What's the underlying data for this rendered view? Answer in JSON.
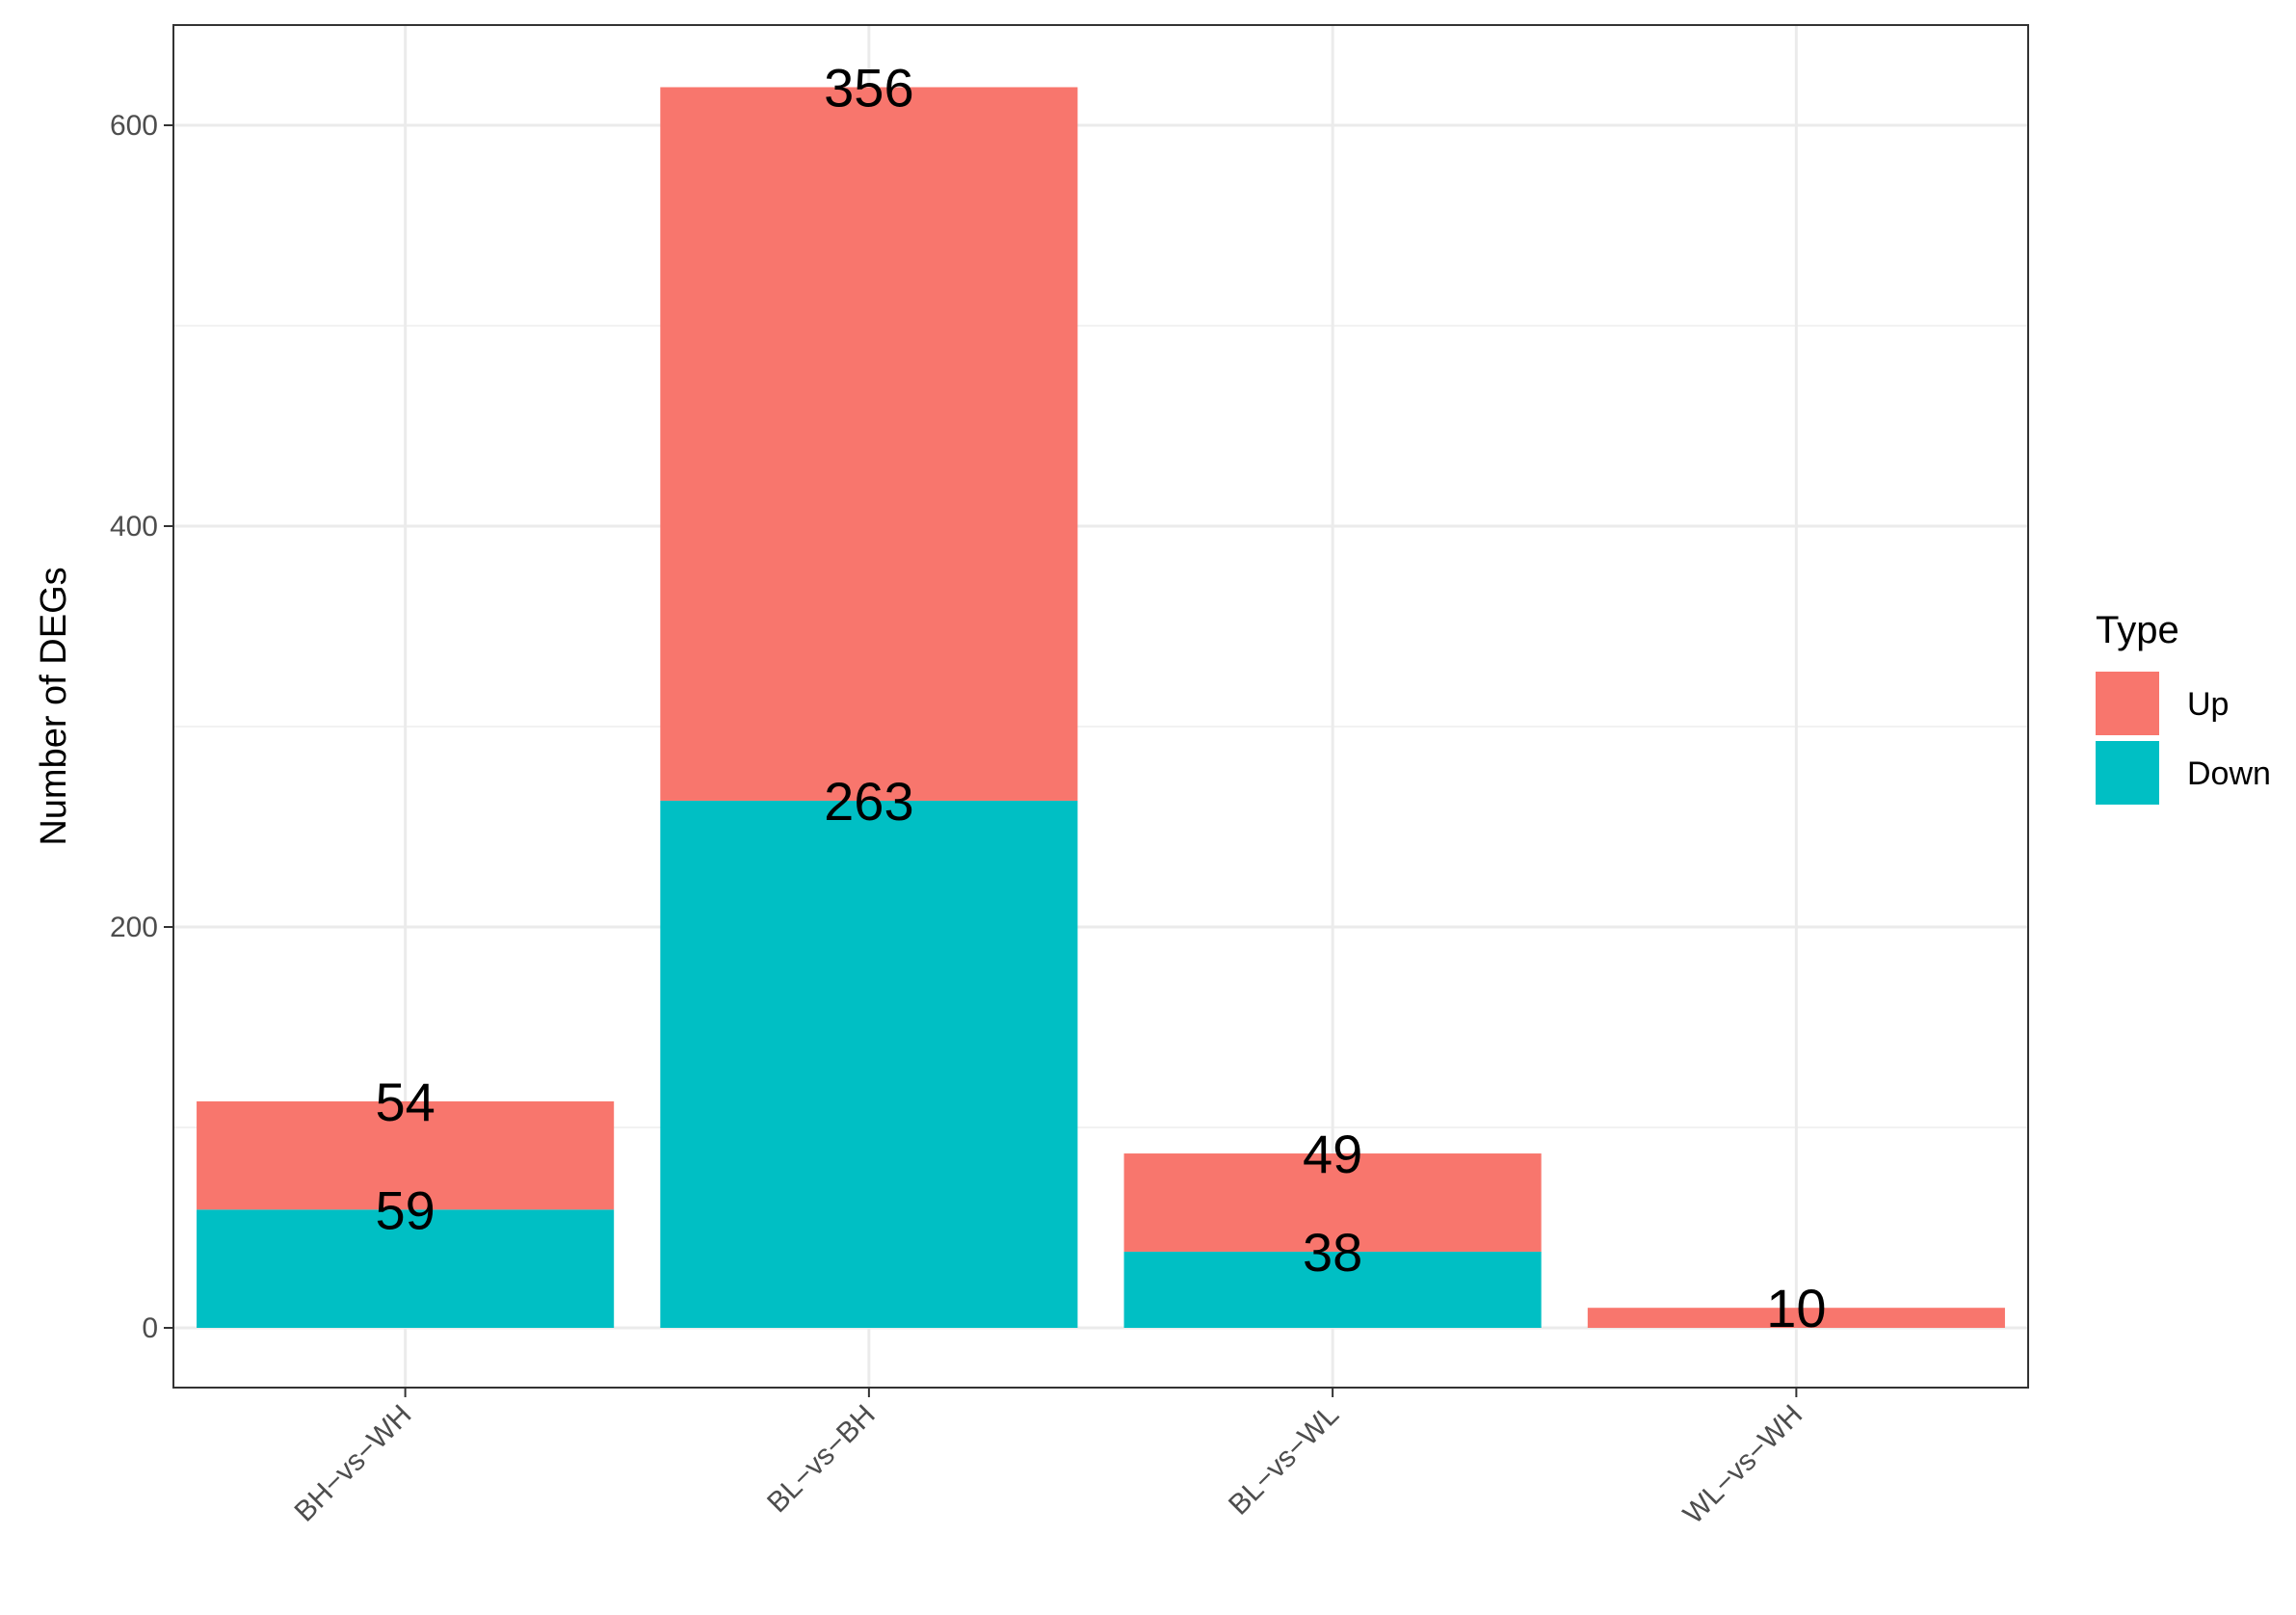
{
  "chart_data": {
    "type": "bar",
    "stacked": true,
    "categories": [
      "BH−vs−WH",
      "BL−vs−BH",
      "BL−vs−WL",
      "WL−vs−WH"
    ],
    "series": [
      {
        "name": "Down",
        "values": [
          59,
          263,
          38,
          0
        ],
        "color": "#00BFC4"
      },
      {
        "name": "Up",
        "values": [
          54,
          356,
          49,
          10
        ],
        "color": "#F8766D"
      }
    ],
    "data_labels": {
      "Down": [
        "59",
        "263",
        "38",
        ""
      ],
      "Up": [
        "54",
        "356",
        "49",
        "10"
      ]
    },
    "title": "",
    "xlabel": "",
    "ylabel": "Number of DEGs",
    "ylim": [
      -30,
      650
    ],
    "yticks": [
      0,
      200,
      400,
      600
    ],
    "ytick_labels": [
      "0",
      "200",
      "400",
      "600"
    ],
    "grid": true,
    "legend": {
      "title": "Type",
      "position": "right",
      "items": [
        {
          "label": "Up",
          "color": "#F8766D"
        },
        {
          "label": "Down",
          "color": "#00BFC4"
        }
      ]
    }
  }
}
